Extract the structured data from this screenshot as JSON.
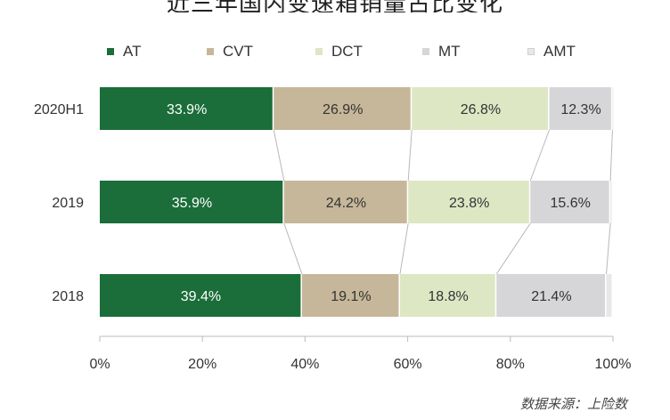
{
  "title": "近三年国内变速箱销量占比变化",
  "source_note": "数据来源：上险数",
  "colors": {
    "AT": "#1b6d3a",
    "CVT": "#c6b79a",
    "DCT": "#dde7c4",
    "MT": "#d6d6d8",
    "AMT": "#e8e8e8"
  },
  "chart_data": {
    "type": "bar",
    "orientation": "horizontal",
    "stacked": true,
    "percent": true,
    "categories": [
      "2020H1",
      "2019",
      "2018"
    ],
    "series": [
      {
        "name": "AT",
        "values": [
          33.9,
          35.9,
          39.4
        ],
        "labels": [
          "33.9%",
          "35.9%",
          "39.4%"
        ]
      },
      {
        "name": "CVT",
        "values": [
          26.9,
          24.2,
          19.1
        ],
        "labels": [
          "26.9%",
          "24.2%",
          "19.1%"
        ]
      },
      {
        "name": "DCT",
        "values": [
          26.8,
          23.8,
          18.8
        ],
        "labels": [
          "26.8%",
          "23.8%",
          "18.8%"
        ]
      },
      {
        "name": "MT",
        "values": [
          12.3,
          15.6,
          21.4
        ],
        "labels": [
          "12.3%",
          "15.6%",
          "21.4%"
        ]
      },
      {
        "name": "AMT",
        "values": [
          0.5,
          0.5,
          1.3
        ],
        "labels": [
          "",
          "",
          ""
        ]
      }
    ],
    "xlim": [
      0,
      100
    ],
    "xticks": [
      "0%",
      "20%",
      "40%",
      "60%",
      "80%",
      "100%"
    ],
    "legend_position": "top",
    "grid": false
  }
}
